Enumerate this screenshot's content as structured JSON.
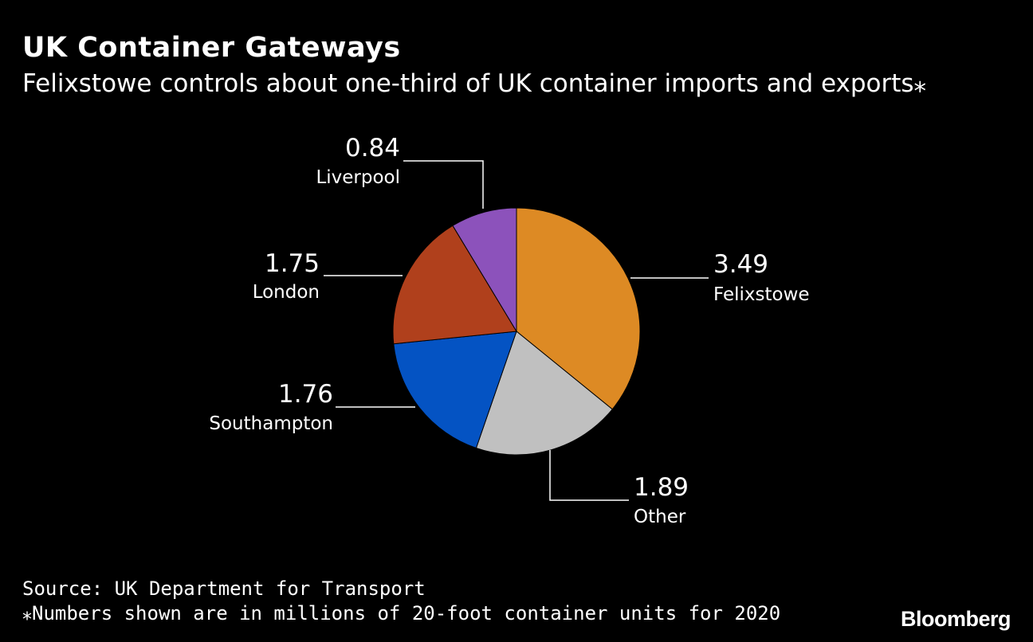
{
  "header": {
    "title": "UK Container Gateways",
    "subtitle": "Felixstowe controls about one-third of UK container imports and exports⁎"
  },
  "chart_data": {
    "type": "pie",
    "title": "UK Container Gateways",
    "subtitle": "Felixstowe controls about one-third of UK container imports and exports⁎",
    "slices": [
      {
        "label": "Felixstowe",
        "value": 3.49,
        "value_label": "3.49",
        "color": "#dd8a24"
      },
      {
        "label": "Other",
        "value": 1.89,
        "value_label": "1.89",
        "color": "#c0c0c0"
      },
      {
        "label": "Southampton",
        "value": 1.76,
        "value_label": "1.76",
        "color": "#0453c3"
      },
      {
        "label": "London",
        "value": 1.75,
        "value_label": "1.75",
        "color": "#b0401c"
      },
      {
        "label": "Liverpool",
        "value": 0.84,
        "value_label": "0.84",
        "color": "#8c52bb"
      }
    ],
    "start_angle": "12 o'clock",
    "direction": "clockwise"
  },
  "footer": {
    "source": "Source: UK Department for Transport",
    "note": "⁎Numbers shown are in millions of 20-foot container units for 2020",
    "brand": "Bloomberg"
  }
}
